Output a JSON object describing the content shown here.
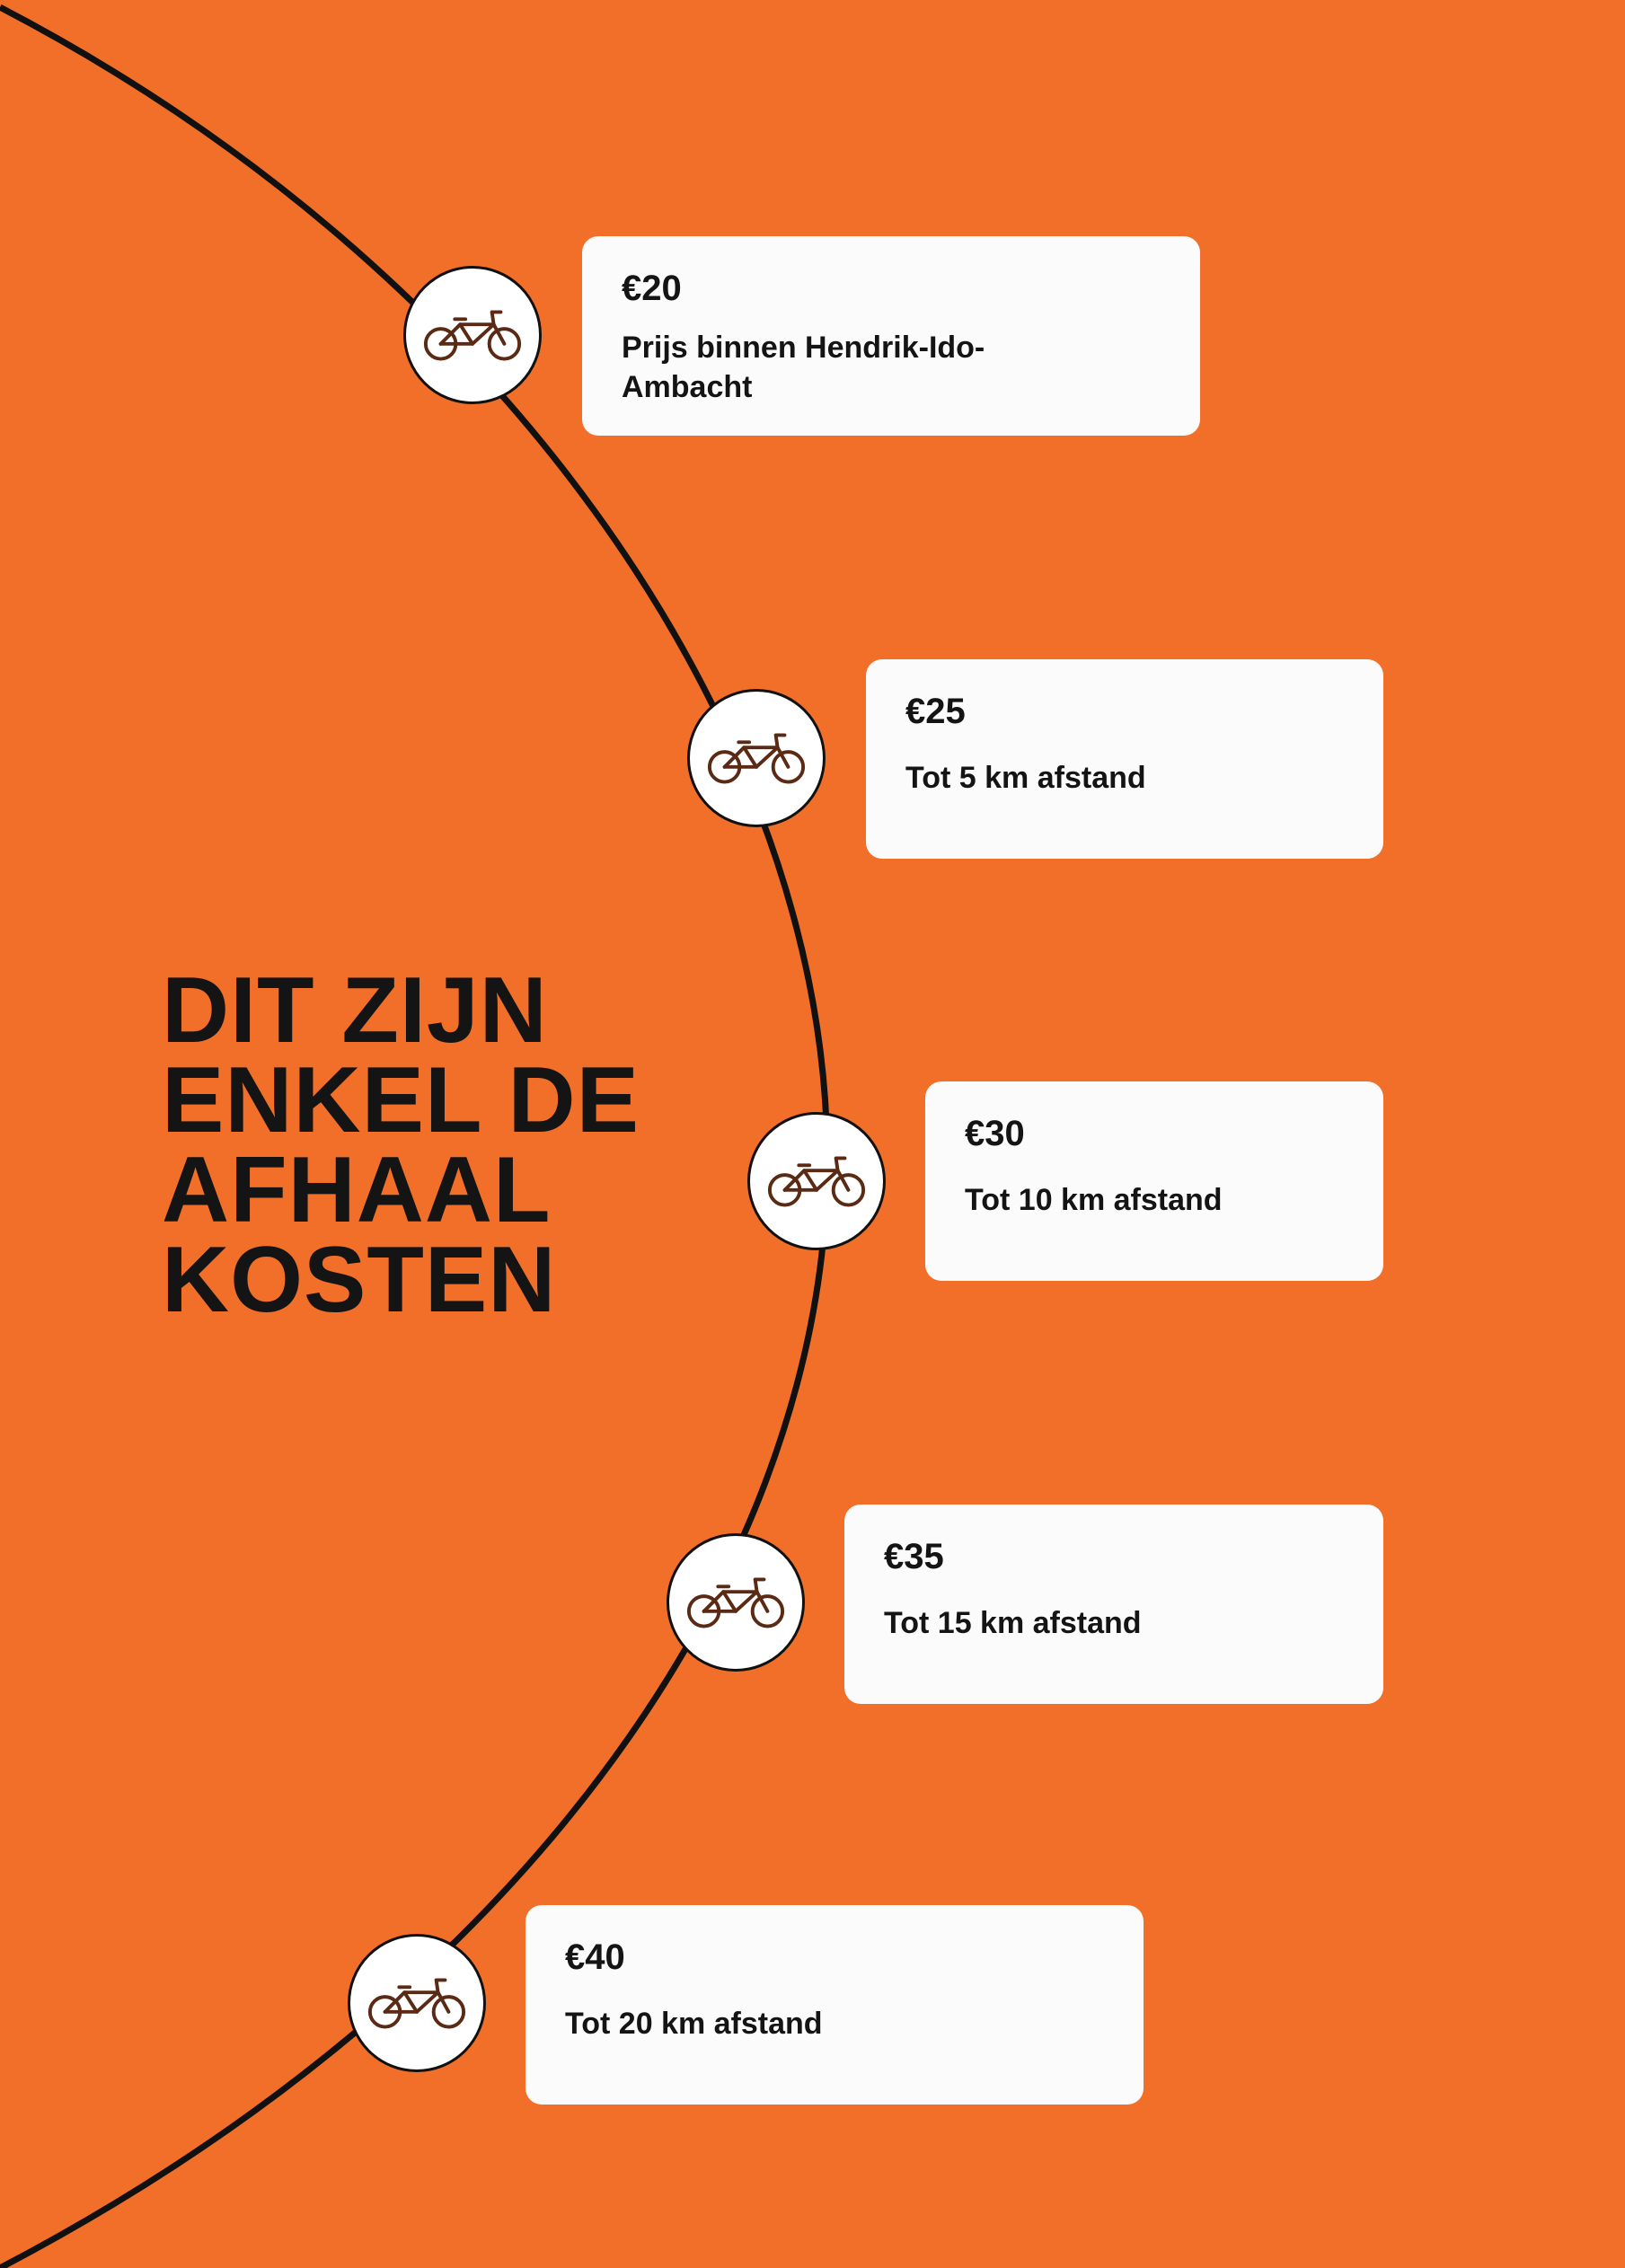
{
  "heading": {
    "lines": [
      "DIT ZIJN",
      "ENKEL DE",
      "AFHAAL",
      "KOSTEN"
    ]
  },
  "colors": {
    "background": "#F26F29",
    "card": "#FBFBFB",
    "text": "#141414",
    "line": "#111111",
    "icon": "#5A2A14"
  },
  "stops": [
    {
      "price": "€20",
      "description": "Prijs binnen Hendrik-Ido-Ambacht",
      "icon": "bicycle-icon"
    },
    {
      "price": "€25",
      "description": "Tot 5 km afstand",
      "icon": "bicycle-icon"
    },
    {
      "price": "€30",
      "description": "Tot 10 km afstand",
      "icon": "bicycle-icon"
    },
    {
      "price": "€35",
      "description": "Tot 15 km afstand",
      "icon": "bicycle-icon"
    },
    {
      "price": "€40",
      "description": "Tot 20 km afstand",
      "icon": "bicycle-icon"
    }
  ]
}
